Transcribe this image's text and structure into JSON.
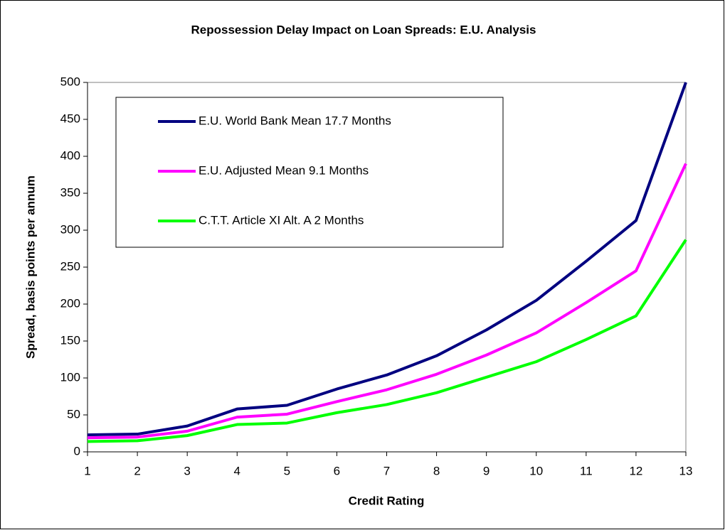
{
  "chart_data": {
    "type": "line",
    "title": "Repossession Delay Impact on Loan Spreads: E.U. Analysis",
    "x_label": "Credit Rating",
    "y_label": "Spread, basis points per annum",
    "x": [
      1,
      2,
      3,
      4,
      5,
      6,
      7,
      8,
      9,
      10,
      11,
      12,
      13
    ],
    "xlim": [
      1,
      13
    ],
    "xticks": [
      1,
      2,
      3,
      4,
      5,
      6,
      7,
      8,
      9,
      10,
      11,
      12,
      13
    ],
    "ylim": [
      0,
      500
    ],
    "yticks": [
      0,
      50,
      100,
      150,
      200,
      250,
      300,
      350,
      400,
      450,
      500
    ],
    "grid": false,
    "legend": "upper left",
    "series": [
      {
        "name": "E.U. World Bank Mean 17.7 Months",
        "color": "#000080",
        "values": [
          23,
          24,
          35,
          58,
          63,
          85,
          104,
          130,
          165,
          205,
          258,
          313,
          500
        ]
      },
      {
        "name": "E.U. Adjusted Mean 9.1 Months",
        "color": "#ff00ff",
        "values": [
          19,
          20,
          28,
          47,
          51,
          68,
          84,
          105,
          131,
          161,
          202,
          245,
          390
        ]
      },
      {
        "name": "C.T.T. Article XI Alt. A 2 Months",
        "color": "#00ff00",
        "values": [
          14,
          15,
          22,
          37,
          39,
          53,
          64,
          80,
          101,
          122,
          152,
          184,
          287
        ]
      }
    ]
  }
}
